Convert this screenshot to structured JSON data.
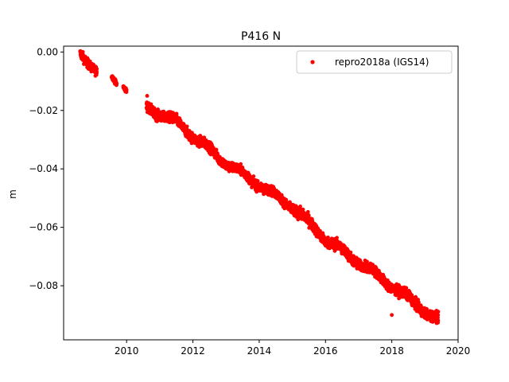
{
  "chart_data": {
    "type": "scatter",
    "title": "P416 N",
    "xlabel": "",
    "ylabel": "m",
    "xlim": [
      2008.1,
      2020.0
    ],
    "ylim": [
      -0.0985,
      0.002
    ],
    "xticks": [
      2010,
      2012,
      2014,
      2016,
      2018,
      2020
    ],
    "yticks": [
      0.0,
      -0.02,
      -0.04,
      -0.06,
      -0.08
    ],
    "ytick_labels": [
      "0.00",
      "−0.02",
      "−0.04",
      "−0.06",
      "−0.08"
    ],
    "grid": false,
    "legend": {
      "position": "top-right"
    },
    "series": [
      {
        "name": "repro2018a (IGS14)",
        "color": "#ff0000",
        "marker": "circle",
        "segments": [
          {
            "x": [
              2008.6,
              2009.1
            ],
            "y": [
              -0.001,
              -0.006
            ],
            "noise": 0.0014
          },
          {
            "x": [
              2009.55,
              2009.7
            ],
            "y": [
              -0.009,
              -0.011
            ],
            "noise": 0.0007
          },
          {
            "x": [
              2009.9,
              2010.0
            ],
            "y": [
              -0.011,
              -0.0125
            ],
            "noise": 0.0006
          },
          {
            "x": [
              2010.6,
              2011.5
            ],
            "y": [
              -0.019,
              -0.024
            ],
            "noise": 0.0016
          },
          {
            "x": [
              2011.5,
              2013.0
            ],
            "y": [
              -0.024,
              -0.038
            ],
            "noise": 0.0016
          },
          {
            "x": [
              2013.0,
              2015.0
            ],
            "y": [
              -0.038,
              -0.053
            ],
            "noise": 0.0015
          },
          {
            "x": [
              2015.0,
              2016.0
            ],
            "y": [
              -0.053,
              -0.064
            ],
            "noise": 0.0017
          },
          {
            "x": [
              2016.0,
              2017.0
            ],
            "y": [
              -0.064,
              -0.072
            ],
            "noise": 0.0017
          },
          {
            "x": [
              2017.0,
              2018.0
            ],
            "y": [
              -0.072,
              -0.08
            ],
            "noise": 0.0016
          },
          {
            "x": [
              2018.0,
              2019.4
            ],
            "y": [
              -0.08,
              -0.092
            ],
            "noise": 0.0016
          }
        ],
        "outliers": [
          {
            "x": 2018.0,
            "y": -0.09
          },
          {
            "x": 2010.62,
            "y": -0.015
          }
        ]
      }
    ]
  }
}
